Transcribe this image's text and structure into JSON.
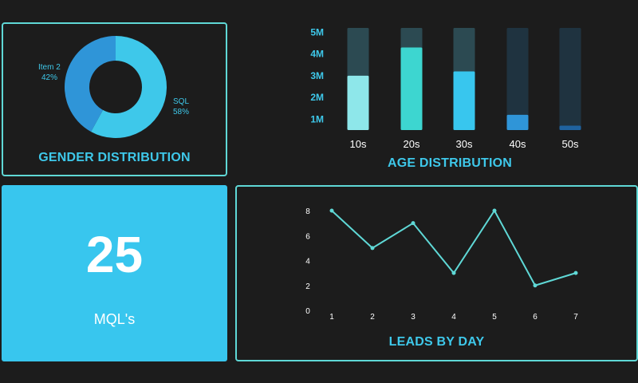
{
  "gender": {
    "title": "GENDER DISTRIBUTION",
    "labels": {
      "item2_name": "Item 2",
      "item2_pct": "42%",
      "sql_name": "SQL",
      "sql_pct": "58%"
    }
  },
  "age": {
    "title": "AGE DISTRIBUTION"
  },
  "kpi": {
    "value": "25",
    "label": "MQL's"
  },
  "leads": {
    "title": "LEADS BY DAY"
  },
  "colors": {
    "accent": "#5fd8d6",
    "title": "#3ec8ea",
    "donut_sql": "#3ec8ea",
    "donut_item2": "#2f95d8",
    "bar_track": "#2c4a52",
    "bar_track_dark": "#1f3340",
    "bar_colors": [
      "#8ee7ea",
      "#3dd6d0",
      "#38c6ee",
      "#2f95d8",
      "#1f63a0"
    ],
    "kpi_bg": "#38c6ee",
    "line": "#5fd8d6"
  },
  "chart_data": [
    {
      "type": "pie",
      "title": "GENDER DISTRIBUTION",
      "categories": [
        "SQL",
        "Item 2"
      ],
      "values": [
        58,
        42
      ]
    },
    {
      "type": "bar",
      "title": "AGE DISTRIBUTION",
      "categories": [
        "10s",
        "20s",
        "30s",
        "40s",
        "50s"
      ],
      "values": [
        3.0,
        4.3,
        3.2,
        1.2,
        0.7
      ],
      "y_ticks": [
        "1M",
        "2M",
        "3M",
        "4M",
        "5M"
      ],
      "y_tick_values": [
        1,
        2,
        3,
        4,
        5
      ],
      "ylim": [
        0.5,
        5.2
      ]
    },
    {
      "type": "line",
      "title": "LEADS BY DAY",
      "x": [
        1,
        2,
        3,
        4,
        5,
        6,
        7
      ],
      "values": [
        8,
        5,
        7,
        3,
        8,
        2,
        3
      ],
      "y_ticks": [
        0,
        2,
        4,
        6,
        8
      ],
      "ylim": [
        0,
        8
      ]
    }
  ]
}
